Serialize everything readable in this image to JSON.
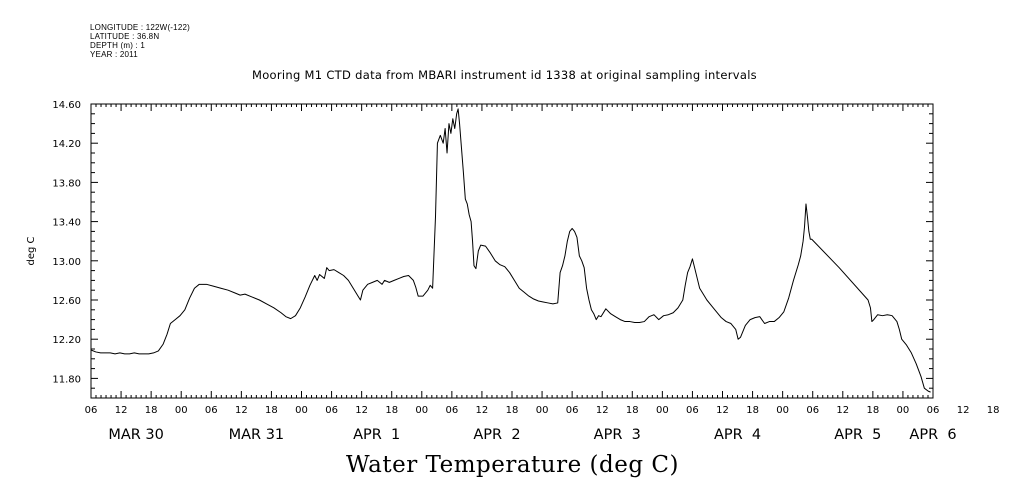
{
  "meta": {
    "longitude": "LONGITUDE : 122W(-122)",
    "latitude": "LATITUDE : 36.8N",
    "depth": "DEPTH (m) : 1",
    "year": "YEAR : 2011"
  },
  "chart_data": {
    "type": "line",
    "title": "Mooring M1 CTD data from MBARI instrument id 1338 at original sampling intervals",
    "xlabel": "Water Temperature (deg C)",
    "ylabel": "deg C",
    "ylim": [
      11.6,
      14.6
    ],
    "yticks": [
      "11.80",
      "12.20",
      "12.60",
      "13.00",
      "13.40",
      "13.80",
      "14.20",
      "14.60"
    ],
    "xlim_hours": [
      0,
      168
    ],
    "x_start_label": "MAR 30 06:00",
    "hour_tick_labels": [
      "06",
      "12",
      "18",
      "00",
      "06",
      "12",
      "18",
      "00",
      "06",
      "12",
      "18",
      "00",
      "06",
      "12",
      "18",
      "00",
      "06",
      "12",
      "18",
      "00",
      "06",
      "12",
      "18",
      "00",
      "06",
      "12",
      "18",
      "00",
      "06",
      "12",
      "18",
      "00",
      "06"
    ],
    "day_labels": [
      {
        "label": "MAR 30",
        "hour": 9
      },
      {
        "label": "MAR 31",
        "hour": 33
      },
      {
        "label": "APR  1",
        "hour": 57
      },
      {
        "label": "APR  2",
        "hour": 81
      },
      {
        "label": "APR  3",
        "hour": 105
      },
      {
        "label": "APR  4",
        "hour": 129
      },
      {
        "label": "APR  5",
        "hour": 153
      },
      {
        "label": "APR  6",
        "hour": 168
      }
    ],
    "series": [
      {
        "points": [
          [
            0,
            12.09
          ],
          [
            1,
            12.07
          ],
          [
            2,
            12.06
          ],
          [
            3,
            12.06
          ],
          [
            4,
            12.06
          ],
          [
            5,
            12.05
          ],
          [
            6,
            12.06
          ],
          [
            7,
            12.05
          ],
          [
            8,
            12.05
          ],
          [
            9,
            12.06
          ],
          [
            10,
            12.05
          ],
          [
            11,
            12.05
          ],
          [
            12,
            12.05
          ],
          [
            13,
            12.06
          ],
          [
            14,
            12.08
          ],
          [
            15,
            12.15
          ],
          [
            15.8,
            12.25
          ],
          [
            16.5,
            12.36
          ],
          [
            17.5,
            12.4
          ],
          [
            18.5,
            12.44
          ],
          [
            19.5,
            12.5
          ],
          [
            20.5,
            12.62
          ],
          [
            21.5,
            12.72
          ],
          [
            22.5,
            12.76
          ],
          [
            24,
            12.76
          ],
          [
            25.5,
            12.74
          ],
          [
            27,
            12.72
          ],
          [
            28.5,
            12.7
          ],
          [
            30,
            12.67
          ],
          [
            31,
            12.65
          ],
          [
            32,
            12.66
          ],
          [
            33.5,
            12.63
          ],
          [
            35,
            12.6
          ],
          [
            36.5,
            12.56
          ],
          [
            38,
            12.52
          ],
          [
            39.5,
            12.47
          ],
          [
            40.5,
            12.43
          ],
          [
            41.5,
            12.41
          ],
          [
            42.5,
            12.44
          ],
          [
            43.5,
            12.52
          ],
          [
            44.5,
            12.63
          ],
          [
            45.5,
            12.75
          ],
          [
            46.5,
            12.85
          ],
          [
            47,
            12.8
          ],
          [
            47.5,
            12.86
          ],
          [
            48.5,
            12.82
          ],
          [
            49,
            12.93
          ],
          [
            49.5,
            12.9
          ],
          [
            50.5,
            12.91
          ],
          [
            51.5,
            12.88
          ],
          [
            52.5,
            12.85
          ],
          [
            53.5,
            12.8
          ],
          [
            54.5,
            12.72
          ],
          [
            55.5,
            12.64
          ],
          [
            56,
            12.6
          ],
          [
            56.5,
            12.7
          ],
          [
            57.5,
            12.76
          ],
          [
            58.5,
            12.78
          ],
          [
            59.5,
            12.8
          ],
          [
            60.5,
            12.76
          ],
          [
            61,
            12.8
          ],
          [
            62,
            12.78
          ],
          [
            63,
            12.8
          ],
          [
            64,
            12.82
          ],
          [
            65,
            12.84
          ],
          [
            66,
            12.85
          ],
          [
            67,
            12.8
          ],
          [
            67.5,
            12.73
          ],
          [
            68,
            12.64
          ],
          [
            69,
            12.64
          ],
          [
            70,
            12.7
          ],
          [
            70.5,
            12.75
          ],
          [
            71,
            12.72
          ],
          [
            71.6,
            13.45
          ],
          [
            72,
            14.2
          ],
          [
            72.6,
            14.28
          ],
          [
            73.2,
            14.2
          ],
          [
            73.6,
            14.35
          ],
          [
            74,
            14.1
          ],
          [
            74.4,
            14.4
          ],
          [
            74.8,
            14.3
          ],
          [
            75.2,
            14.45
          ],
          [
            75.6,
            14.35
          ],
          [
            76,
            14.5
          ],
          [
            76.3,
            14.55
          ],
          [
            76.6,
            14.4
          ],
          [
            77,
            14.15
          ],
          [
            77.4,
            13.9
          ],
          [
            77.8,
            13.63
          ],
          [
            78.2,
            13.58
          ],
          [
            78.6,
            13.47
          ],
          [
            79,
            13.4
          ],
          [
            79.3,
            13.2
          ],
          [
            79.6,
            12.95
          ],
          [
            80,
            12.92
          ],
          [
            80.5,
            13.1
          ],
          [
            81,
            13.16
          ],
          [
            82,
            13.15
          ],
          [
            83,
            13.08
          ],
          [
            84,
            13.0
          ],
          [
            85,
            12.96
          ],
          [
            86,
            12.94
          ],
          [
            87,
            12.88
          ],
          [
            88,
            12.8
          ],
          [
            89,
            12.72
          ],
          [
            90,
            12.68
          ],
          [
            91,
            12.64
          ],
          [
            92,
            12.61
          ],
          [
            93,
            12.59
          ],
          [
            94,
            12.58
          ],
          [
            95,
            12.57
          ],
          [
            96,
            12.56
          ],
          [
            97,
            12.57
          ],
          [
            97.5,
            12.88
          ],
          [
            98,
            12.95
          ],
          [
            98.5,
            13.05
          ],
          [
            99,
            13.2
          ],
          [
            99.5,
            13.3
          ],
          [
            100,
            13.33
          ],
          [
            100.5,
            13.3
          ],
          [
            101,
            13.24
          ],
          [
            101.5,
            13.05
          ],
          [
            102,
            13.0
          ],
          [
            102.5,
            12.93
          ],
          [
            103,
            12.72
          ],
          [
            103.5,
            12.6
          ],
          [
            104,
            12.5
          ],
          [
            104.5,
            12.46
          ],
          [
            105,
            12.4
          ],
          [
            105.5,
            12.44
          ],
          [
            106,
            12.43
          ],
          [
            107,
            12.51
          ],
          [
            108,
            12.46
          ],
          [
            109,
            12.43
          ],
          [
            110,
            12.4
          ],
          [
            111,
            12.38
          ],
          [
            112,
            12.38
          ],
          [
            113,
            12.37
          ],
          [
            114,
            12.37
          ],
          [
            115,
            12.38
          ],
          [
            116,
            12.43
          ],
          [
            117,
            12.45
          ],
          [
            118,
            12.4
          ],
          [
            119,
            12.44
          ],
          [
            120,
            12.45
          ],
          [
            121,
            12.47
          ],
          [
            122,
            12.52
          ],
          [
            123,
            12.6
          ],
          [
            123.5,
            12.75
          ],
          [
            124,
            12.88
          ],
          [
            124.5,
            12.94
          ],
          [
            125,
            13.02
          ],
          [
            125.5,
            12.92
          ],
          [
            126,
            12.82
          ],
          [
            126.5,
            12.72
          ],
          [
            127,
            12.68
          ],
          [
            128,
            12.6
          ],
          [
            129,
            12.54
          ],
          [
            130,
            12.48
          ],
          [
            131,
            12.42
          ],
          [
            132,
            12.38
          ],
          [
            133,
            12.36
          ],
          [
            134,
            12.3
          ],
          [
            134.5,
            12.2
          ],
          [
            135,
            12.22
          ],
          [
            135.5,
            12.28
          ],
          [
            136,
            12.34
          ],
          [
            137,
            12.4
          ],
          [
            138,
            12.42
          ],
          [
            139,
            12.43
          ],
          [
            140,
            12.36
          ],
          [
            141,
            12.38
          ],
          [
            142,
            12.38
          ],
          [
            143,
            12.42
          ],
          [
            144,
            12.48
          ],
          [
            145,
            12.62
          ],
          [
            146,
            12.8
          ],
          [
            147,
            12.96
          ],
          [
            147.5,
            13.05
          ],
          [
            148,
            13.2
          ],
          [
            148.3,
            13.35
          ],
          [
            148.6,
            13.58
          ],
          [
            148.9,
            13.45
          ],
          [
            149.2,
            13.3
          ],
          [
            149.5,
            13.22
          ],
          [
            149.8,
            13.22
          ],
          [
            155.5,
            12.93
          ],
          [
            161.5,
            12.6
          ],
          [
            162,
            12.52
          ],
          [
            162.3,
            12.38
          ],
          [
            162.7,
            12.4
          ],
          [
            163.5,
            12.45
          ],
          [
            164.5,
            12.44
          ],
          [
            165.5,
            12.45
          ],
          [
            166.5,
            12.44
          ],
          [
            167.5,
            12.38
          ],
          [
            168,
            12.3
          ],
          [
            168.5,
            12.2
          ],
          [
            169.5,
            12.14
          ],
          [
            170.5,
            12.06
          ],
          [
            171.5,
            11.95
          ],
          [
            172.5,
            11.82
          ],
          [
            173.2,
            11.7
          ],
          [
            174,
            11.67
          ],
          [
            174.5,
            11.66
          ]
        ]
      }
    ]
  }
}
